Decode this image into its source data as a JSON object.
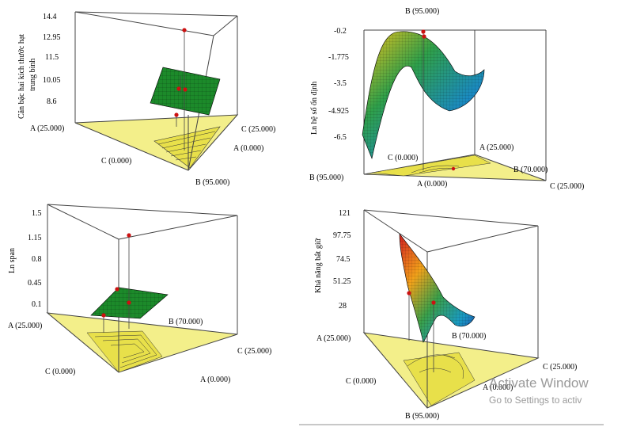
{
  "watermark": {
    "line1": "Activate Window",
    "line2": "Go to Settings to activ"
  },
  "colors": {
    "floor": "#f2ee86",
    "floor_dark": "#e6dd3c",
    "flat_surface": "#1c8a2a",
    "design_point": "#cc1111"
  },
  "chart_data": [
    {
      "type": "surface3d",
      "ylabel_line1": "Căn bậc hai kích thước hạt",
      "ylabel_line2": "trung bình",
      "yticks": [
        "14.4",
        "12.95",
        "11.5",
        "10.05",
        "8.6"
      ],
      "vertex_labels": [
        "A (25.000)",
        "C (25.000)",
        "A (0.000)",
        "C (0.000)",
        "B (95.000)"
      ],
      "surface": "flat",
      "design_points": [
        12.4,
        10.05,
        9.4,
        8.3
      ]
    },
    {
      "type": "surface3d",
      "ylabel": "Ln hệ số ổn định",
      "yticks": [
        "-0.2",
        "-1.775",
        "-3.5",
        "-4.925",
        "-6.5"
      ],
      "vertex_labels": [
        "B (95.000)",
        "A (25.000)",
        "C (0.000)",
        "B (95.000)",
        "B (70.000)",
        "A (0.000)",
        "C (25.000)"
      ],
      "surface": "curved",
      "design_points": [
        -0.2,
        -0.4
      ]
    },
    {
      "type": "surface3d",
      "ylabel": "Ln span",
      "yticks": [
        "1.5",
        "1.15",
        "0.8",
        "0.45",
        "0.1"
      ],
      "vertex_labels": [
        "A (25.000)",
        "B (70.000)",
        "C (25.000)",
        "C (0.000)",
        "A (0.000)"
      ],
      "surface": "flat",
      "design_points": [
        1.22,
        0.28,
        0.09,
        0.04
      ]
    },
    {
      "type": "surface3d",
      "ylabel": "Khả năng bắt giữ",
      "yticks": [
        "121",
        "97.75",
        "74.5",
        "51.25",
        "28"
      ],
      "vertex_labels": [
        "A (25.000)",
        "C (25.000)",
        "C (0.000)",
        "A (0.000)",
        "B (95.000)",
        "B (70.000)"
      ],
      "surface": "curved",
      "design_points": [
        33,
        30
      ]
    }
  ]
}
